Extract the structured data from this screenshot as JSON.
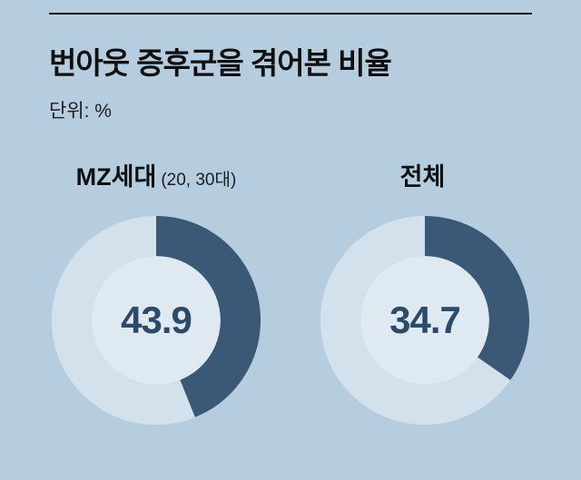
{
  "header": {
    "title": "번아웃 증후군을 겪어본 비율",
    "unit_label": "단위: %"
  },
  "chart_data": {
    "type": "pie",
    "subtype": "donut",
    "title": "번아웃 증후군을 겪어본 비율",
    "unit": "%",
    "value_range": [
      0,
      100
    ],
    "legend_position": "none",
    "series": [
      {
        "name": "MZ세대",
        "note": "(20, 30대)",
        "value": 43.9
      },
      {
        "name": "전체",
        "note": "",
        "value": 34.7
      }
    ],
    "colors": {
      "background": "#b6cddf",
      "segment": "#3b5877",
      "remainder": "#d3e1ec",
      "hole": "#dfe9f1",
      "value_text": "#2d4a69",
      "title_text": "#101010"
    }
  }
}
